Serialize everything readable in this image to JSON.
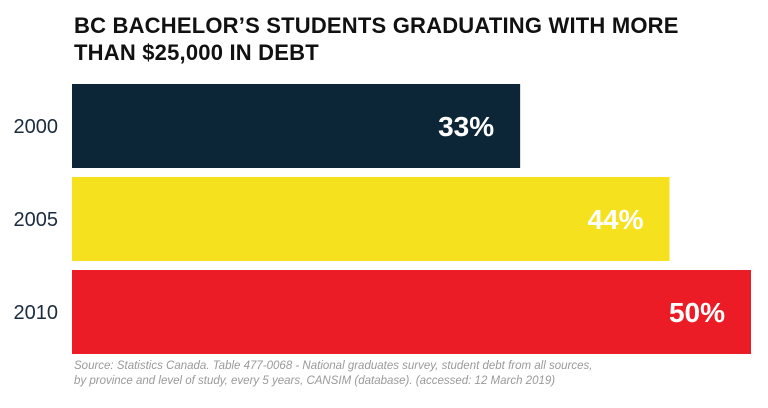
{
  "title": "BC BACHELOR’S STUDENTS GRADUATING WITH MORE THAN $25,000 IN DEBT",
  "source": {
    "line1": "Source:  Statistics Canada. Table 477-0068 - National graduates survey, student debt from all sources,",
    "line2": "by province and level of study, every 5 years, CANSIM (database). (accessed: 12 March 2019)"
  },
  "chart_data": {
    "type": "bar",
    "orientation": "horizontal",
    "title": "BC BACHELOR’S STUDENTS GRADUATING WITH MORE THAN $25,000 IN DEBT",
    "categories": [
      "2000",
      "2005",
      "2010"
    ],
    "values": [
      33,
      44,
      50
    ],
    "labels": [
      "33%",
      "44%",
      "50%"
    ],
    "unit": "%",
    "xlim": [
      0,
      50
    ],
    "colors": [
      "#0c2638",
      "#f6e11f",
      "#ec1c26"
    ],
    "label_colors": [
      "#ffffff",
      "#ffffff",
      "#ffffff"
    ],
    "grid": false,
    "legend": "none"
  }
}
